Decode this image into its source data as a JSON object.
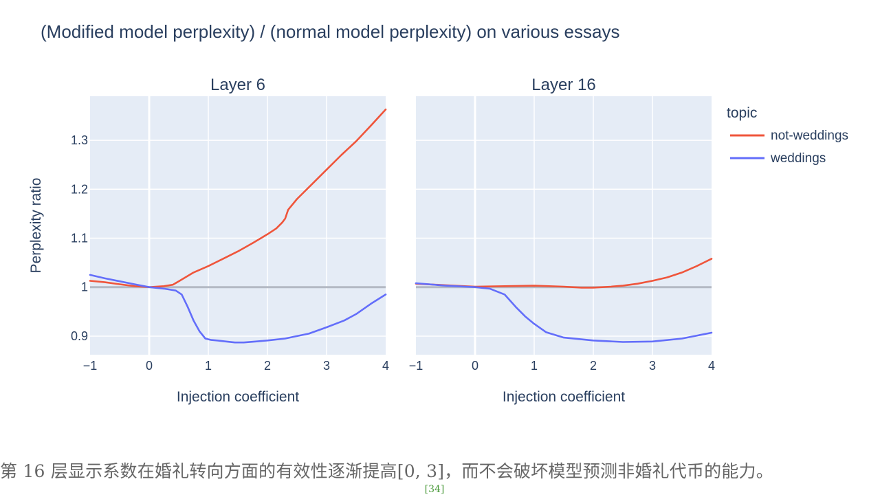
{
  "figure": {
    "title": "(Modified model perplexity) / (normal model perplexity) on various essays",
    "legend_title": "topic"
  },
  "chart_data": [
    {
      "type": "line",
      "title": "Layer 6",
      "xlabel": "Injection coefficient",
      "ylabel": "Perplexity ratio",
      "xlim": [
        -1,
        4
      ],
      "ylim": [
        0.862,
        1.39
      ],
      "xticks": [
        -1,
        0,
        1,
        2,
        3,
        4
      ],
      "xtick_labels": [
        "−1",
        "0",
        "1",
        "2",
        "3",
        "4"
      ],
      "yticks": [
        0.9,
        1.0,
        1.1,
        1.2,
        1.3
      ],
      "ytick_labels": [
        "0.9",
        "1",
        "1.1",
        "1.2",
        "1.3"
      ],
      "reference_line": 1.0,
      "grid": true,
      "legend_position": "right",
      "series": [
        {
          "name": "not-weddings",
          "color": "#EF553B",
          "x": [
            -1,
            -0.75,
            -0.5,
            -0.25,
            0,
            0.25,
            0.4,
            0.5,
            0.75,
            1.0,
            1.25,
            1.5,
            1.75,
            2.0,
            2.15,
            2.25,
            2.3,
            2.35,
            2.5,
            2.75,
            3.0,
            3.25,
            3.5,
            3.75,
            4.0
          ],
          "y": [
            1.013,
            1.01,
            1.006,
            1.002,
            1.0,
            1.002,
            1.005,
            1.012,
            1.03,
            1.043,
            1.058,
            1.073,
            1.09,
            1.108,
            1.12,
            1.132,
            1.14,
            1.158,
            1.18,
            1.21,
            1.24,
            1.27,
            1.298,
            1.33,
            1.363
          ]
        },
        {
          "name": "weddings",
          "color": "#636EFA",
          "x": [
            -1,
            -0.75,
            -0.5,
            -0.25,
            0,
            0.25,
            0.45,
            0.55,
            0.65,
            0.75,
            0.85,
            0.95,
            1.05,
            1.15,
            1.3,
            1.45,
            1.6,
            1.8,
            2.0,
            2.3,
            2.5,
            2.7,
            3.0,
            3.3,
            3.5,
            3.75,
            4.0
          ],
          "y": [
            1.025,
            1.018,
            1.012,
            1.006,
            1.0,
            0.997,
            0.993,
            0.985,
            0.96,
            0.932,
            0.91,
            0.895,
            0.892,
            0.891,
            0.889,
            0.887,
            0.887,
            0.889,
            0.891,
            0.895,
            0.9,
            0.905,
            0.918,
            0.932,
            0.945,
            0.966,
            0.985
          ]
        }
      ]
    },
    {
      "type": "line",
      "title": "Layer 16",
      "xlabel": "Injection coefficient",
      "ylabel": "",
      "xlim": [
        -1,
        4
      ],
      "ylim": [
        0.862,
        1.39
      ],
      "xticks": [
        -1,
        0,
        1,
        2,
        3,
        4
      ],
      "xtick_labels": [
        "−1",
        "0",
        "1",
        "2",
        "3",
        "4"
      ],
      "yticks": [
        0.9,
        1.0,
        1.1,
        1.2,
        1.3
      ],
      "ytick_labels": [],
      "reference_line": 1.0,
      "grid": true,
      "series": [
        {
          "name": "not-weddings",
          "color": "#EF553B",
          "x": [
            -1,
            -0.5,
            0,
            0.5,
            1.0,
            1.5,
            1.8,
            2.0,
            2.3,
            2.5,
            2.75,
            3.0,
            3.25,
            3.5,
            3.75,
            4.0
          ],
          "y": [
            1.007,
            1.004,
            1.001,
            1.002,
            1.003,
            1.001,
            0.999,
            0.999,
            1.001,
            1.003,
            1.007,
            1.013,
            1.02,
            1.03,
            1.043,
            1.058
          ]
        },
        {
          "name": "weddings",
          "color": "#636EFA",
          "x": [
            -1,
            -0.5,
            0,
            0.25,
            0.5,
            0.7,
            0.85,
            1.0,
            1.2,
            1.5,
            2.0,
            2.5,
            3.0,
            3.5,
            4.0
          ],
          "y": [
            1.008,
            1.003,
            1.0,
            0.997,
            0.985,
            0.958,
            0.94,
            0.925,
            0.908,
            0.897,
            0.891,
            0.888,
            0.889,
            0.895,
            0.907
          ]
        }
      ]
    }
  ],
  "caption": {
    "part1": "第",
    "layer_num": " 16 ",
    "part2": "层显示系数在婚礼转向方面的有效性逐渐提高",
    "range": "[0, 3]",
    "part3": "，而不会破坏模型预测非婚礼代币的能力。",
    "ref": "[34]"
  }
}
